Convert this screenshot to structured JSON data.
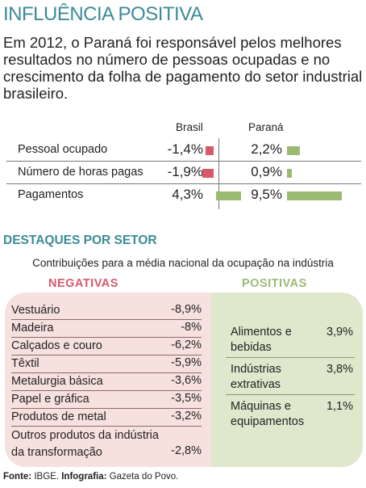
{
  "title": "INFLUÊNCIA POSITIVA",
  "intro": "Em 2012, o Paraná foi responsável pelos melhores resultados no número de pessoas ocupadas e no crescimento da folha de pagamento do setor industrial brasileiro.",
  "colors": {
    "accent": "#3c8a9a",
    "negative": "#d9596b",
    "positive": "#9bbb73",
    "neg_bg": "#f7e1df",
    "pos_bg": "#dfe8cd"
  },
  "chart_data": [
    {
      "type": "bar",
      "categories": [
        "Pessoal ocupado",
        "Número de horas pagas",
        "Pagamentos"
      ],
      "series": [
        {
          "name": "Brasil",
          "values": [
            -1.4,
            -1.9,
            4.3
          ],
          "labels": [
            "-1,4%",
            "-1,9%",
            "4,3%"
          ]
        },
        {
          "name": "Paraná",
          "values": [
            2.2,
            0.9,
            9.5
          ],
          "labels": [
            "2,2%",
            "0,9%",
            "9,5%"
          ]
        }
      ]
    },
    {
      "type": "table",
      "section_title": "DESTAQUES POR SETOR",
      "subtitle": "Contribuições para a média nacional da ocupação na indústria",
      "negative": {
        "title": "NEGATIVAS",
        "rows": [
          {
            "label": "Vestuário",
            "value": "-8,9%"
          },
          {
            "label": "Madeira",
            "value": "-8%"
          },
          {
            "label": "Calçados e couro",
            "value": "-6,2%"
          },
          {
            "label": "Têxtil",
            "value": "-5,9%"
          },
          {
            "label": "Metalurgia básica",
            "value": "-3,6%"
          },
          {
            "label": "Papel e gráfica",
            "value": "-3,5%"
          },
          {
            "label": "Produtos de metal",
            "value": "-3,2%"
          },
          {
            "label": "Outros produtos da indústria",
            "label2": "da transformação",
            "value": "-2,8%"
          }
        ]
      },
      "positive": {
        "title": "POSITIVAS",
        "rows": [
          {
            "label": "Alimentos e",
            "label2": "bebidas",
            "value": "3,9%"
          },
          {
            "label": "Indústrias",
            "label2": "extrativas",
            "value": "3,8%"
          },
          {
            "label": "Máquinas e",
            "label2": "equipamentos",
            "value": "1,1%"
          }
        ]
      }
    }
  ],
  "source": {
    "label1": "Fonte:",
    "text1": " IBGE. ",
    "label2": "Infografia:",
    "text2": " Gazeta do Povo."
  }
}
